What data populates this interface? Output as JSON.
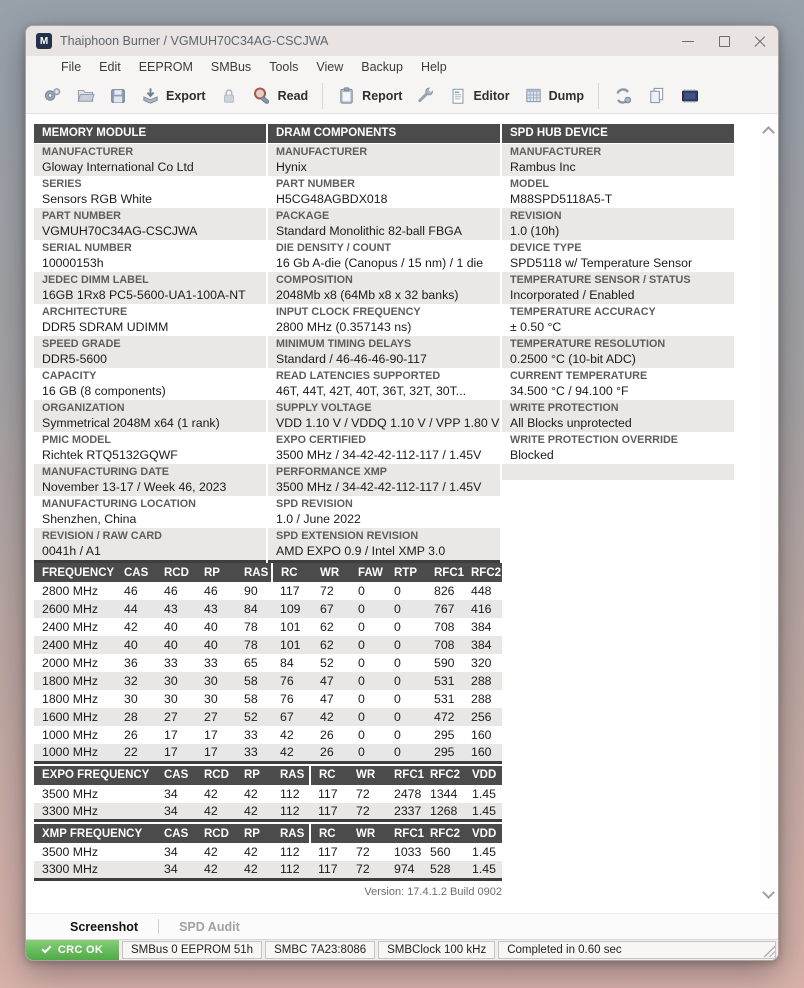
{
  "window": {
    "title": "Thaiphoon Burner / VGMUH70C34AG-CSCJWA"
  },
  "menu_items": [
    "File",
    "Edit",
    "EEPROM",
    "SMBus",
    "Tools",
    "View",
    "Backup",
    "Help"
  ],
  "toolbar": {
    "export_label": "Export",
    "read_label": "Read",
    "report_label": "Report",
    "editor_label": "Editor",
    "dump_label": "Dump"
  },
  "panels": [
    {
      "header": "MEMORY MODULE",
      "rows": [
        {
          "label": "MANUFACTURER",
          "value": "Gloway International Co Ltd"
        },
        {
          "label": "SERIES",
          "value": "Sensors RGB White"
        },
        {
          "label": "PART NUMBER",
          "value": "VGMUH70C34AG-CSCJWA"
        },
        {
          "label": "SERIAL NUMBER",
          "value": "10000153h"
        },
        {
          "label": "JEDEC DIMM LABEL",
          "value": "16GB 1Rx8 PC5-5600-UA1-100A-NT"
        },
        {
          "label": "ARCHITECTURE",
          "value": "DDR5 SDRAM UDIMM"
        },
        {
          "label": "SPEED GRADE",
          "value": "DDR5-5600"
        },
        {
          "label": "CAPACITY",
          "value": "16 GB (8 components)"
        },
        {
          "label": "ORGANIZATION",
          "value": "Symmetrical 2048M x64 (1 rank)"
        },
        {
          "label": "PMIC MODEL",
          "value": "Richtek RTQ5132GQWF"
        },
        {
          "label": "MANUFACTURING DATE",
          "value": "November 13-17 / Week 46, 2023"
        },
        {
          "label": "MANUFACTURING LOCATION",
          "value": "Shenzhen, China"
        },
        {
          "label": "REVISION / RAW CARD",
          "value": "0041h / A1"
        }
      ]
    },
    {
      "header": "DRAM COMPONENTS",
      "rows": [
        {
          "label": "MANUFACTURER",
          "value": "Hynix"
        },
        {
          "label": "PART NUMBER",
          "value": "H5CG48AGBDX018"
        },
        {
          "label": "PACKAGE",
          "value": "Standard Monolithic 82-ball FBGA"
        },
        {
          "label": "DIE DENSITY / COUNT",
          "value": "16 Gb A-die (Canopus / 15 nm) / 1 die"
        },
        {
          "label": "COMPOSITION",
          "value": "2048Mb x8 (64Mb x8 x 32 banks)"
        },
        {
          "label": "INPUT CLOCK FREQUENCY",
          "value": "2800 MHz (0.357143 ns)"
        },
        {
          "label": "MINIMUM TIMING DELAYS",
          "value": "Standard / 46-46-46-90-117"
        },
        {
          "label": "READ LATENCIES SUPPORTED",
          "value": "46T, 44T, 42T, 40T, 36T, 32T, 30T..."
        },
        {
          "label": "SUPPLY VOLTAGE",
          "value": "VDD 1.10 V / VDDQ 1.10 V / VPP 1.80 V"
        },
        {
          "label": "EXPO CERTIFIED",
          "value": "3500 MHz / 34-42-42-112-117 / 1.45V"
        },
        {
          "label": "PERFORMANCE XMP",
          "value": "3500 MHz / 34-42-42-112-117 / 1.45V"
        },
        {
          "label": "SPD REVISION",
          "value": "1.0 / June 2022"
        },
        {
          "label": "SPD EXTENSION REVISION",
          "value": "AMD EXPO 0.9 / Intel XMP 3.0"
        }
      ]
    },
    {
      "header": "SPD HUB DEVICE",
      "rows": [
        {
          "label": "MANUFACTURER",
          "value": "Rambus Inc"
        },
        {
          "label": "MODEL",
          "value": "M88SPD5118A5-T"
        },
        {
          "label": "REVISION",
          "value": "1.0 (10h)"
        },
        {
          "label": "DEVICE TYPE",
          "value": "SPD5118 w/ Temperature Sensor"
        },
        {
          "label": "TEMPERATURE SENSOR / STATUS",
          "value": "Incorporated / Enabled"
        },
        {
          "label": "TEMPERATURE ACCURACY",
          "value": "± 0.50 °C"
        },
        {
          "label": "TEMPERATURE RESOLUTION",
          "value": "0.2500 °C (10-bit ADC)"
        },
        {
          "label": "CURRENT TEMPERATURE",
          "value": "34.500 °C / 94.100 °F"
        },
        {
          "label": "WRITE PROTECTION",
          "value": "All Blocks unprotected"
        },
        {
          "label": "WRITE PROTECTION OVERRIDE",
          "value": "Blocked"
        }
      ]
    }
  ],
  "timing_table": {
    "headers": [
      "FREQUENCY",
      "CAS",
      "RCD",
      "RP",
      "RAS",
      "RC",
      "WR",
      "FAW",
      "RTP",
      "RFC1",
      "RFC2"
    ],
    "rows": [
      [
        "2800 MHz",
        "46",
        "46",
        "46",
        "90",
        "117",
        "72",
        "0",
        "0",
        "826",
        "448"
      ],
      [
        "2600 MHz",
        "44",
        "43",
        "43",
        "84",
        "109",
        "67",
        "0",
        "0",
        "767",
        "416"
      ],
      [
        "2400 MHz",
        "42",
        "40",
        "40",
        "78",
        "101",
        "62",
        "0",
        "0",
        "708",
        "384"
      ],
      [
        "2400 MHz",
        "40",
        "40",
        "40",
        "78",
        "101",
        "62",
        "0",
        "0",
        "708",
        "384"
      ],
      [
        "2000 MHz",
        "36",
        "33",
        "33",
        "65",
        "84",
        "52",
        "0",
        "0",
        "590",
        "320"
      ],
      [
        "1800 MHz",
        "32",
        "30",
        "30",
        "58",
        "76",
        "47",
        "0",
        "0",
        "531",
        "288"
      ],
      [
        "1800 MHz",
        "30",
        "30",
        "30",
        "58",
        "76",
        "47",
        "0",
        "0",
        "531",
        "288"
      ],
      [
        "1600 MHz",
        "28",
        "27",
        "27",
        "52",
        "67",
        "42",
        "0",
        "0",
        "472",
        "256"
      ],
      [
        "1000 MHz",
        "26",
        "17",
        "17",
        "33",
        "42",
        "26",
        "0",
        "0",
        "295",
        "160"
      ],
      [
        "1000 MHz",
        "22",
        "17",
        "17",
        "33",
        "42",
        "26",
        "0",
        "0",
        "295",
        "160"
      ]
    ]
  },
  "expo_table": {
    "headers": [
      "EXPO FREQUENCY",
      "CAS",
      "RCD",
      "RP",
      "RAS",
      "RC",
      "WR",
      "RFC1",
      "RFC2",
      "VDD"
    ],
    "rows": [
      [
        "3500 MHz",
        "34",
        "42",
        "42",
        "112",
        "117",
        "72",
        "2478",
        "1344",
        "1.45"
      ],
      [
        "3300 MHz",
        "34",
        "42",
        "42",
        "112",
        "117",
        "72",
        "2337",
        "1268",
        "1.45"
      ]
    ]
  },
  "xmp_table": {
    "headers": [
      "XMP FREQUENCY",
      "CAS",
      "RCD",
      "RP",
      "RAS",
      "RC",
      "WR",
      "RFC1",
      "RFC2",
      "VDD"
    ],
    "rows": [
      [
        "3500 MHz",
        "34",
        "42",
        "42",
        "112",
        "117",
        "72",
        "1033",
        "560",
        "1.45"
      ],
      [
        "3300 MHz",
        "34",
        "42",
        "42",
        "112",
        "117",
        "72",
        "974",
        "528",
        "1.45"
      ]
    ]
  },
  "version": "Version: 17.4.1.2 Build 0902",
  "tabs": {
    "screenshot": "Screenshot",
    "spd_audit": "SPD Audit"
  },
  "status": {
    "crc_label": "CRC OK",
    "segments": [
      "SMBus 0 EEPROM 51h",
      "SMBC 7A23:8086",
      "SMBClock 100 kHz",
      "Completed in 0.60 sec"
    ]
  },
  "colors": {
    "section_header_bg": "#4b4b4b",
    "row_alt_bg": "#e9e8e6",
    "crc_green": "#4faa46",
    "titlebar_bg": "#e9e4e1"
  }
}
